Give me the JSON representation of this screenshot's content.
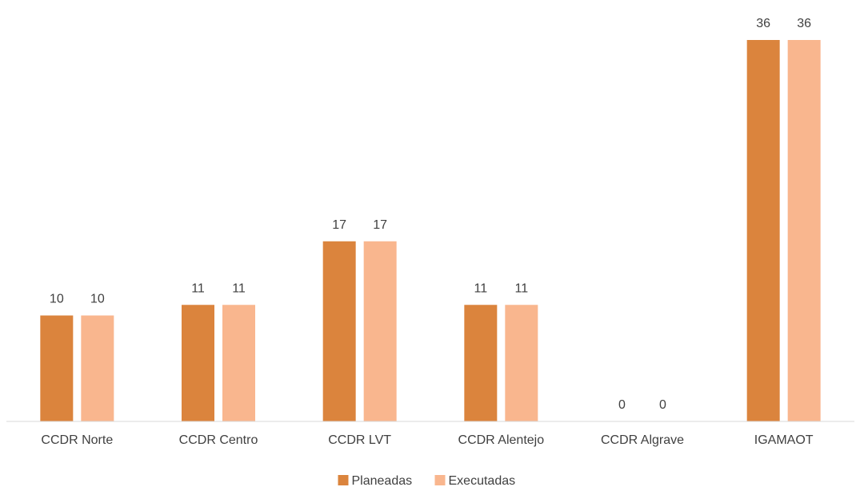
{
  "chart_data": {
    "type": "bar",
    "categories": [
      "CCDR Norte",
      "CCDR Centro",
      "CCDR LVT",
      "CCDR Alentejo",
      "CCDR Algrave",
      "IGAMAOT"
    ],
    "series": [
      {
        "name": "Planeadas",
        "color": "#db843d",
        "values": [
          10,
          11,
          17,
          11,
          0,
          36
        ]
      },
      {
        "name": "Executadas",
        "color": "#f9b68e",
        "values": [
          10,
          11,
          17,
          11,
          0,
          36
        ]
      }
    ],
    "legend": "bottom"
  }
}
